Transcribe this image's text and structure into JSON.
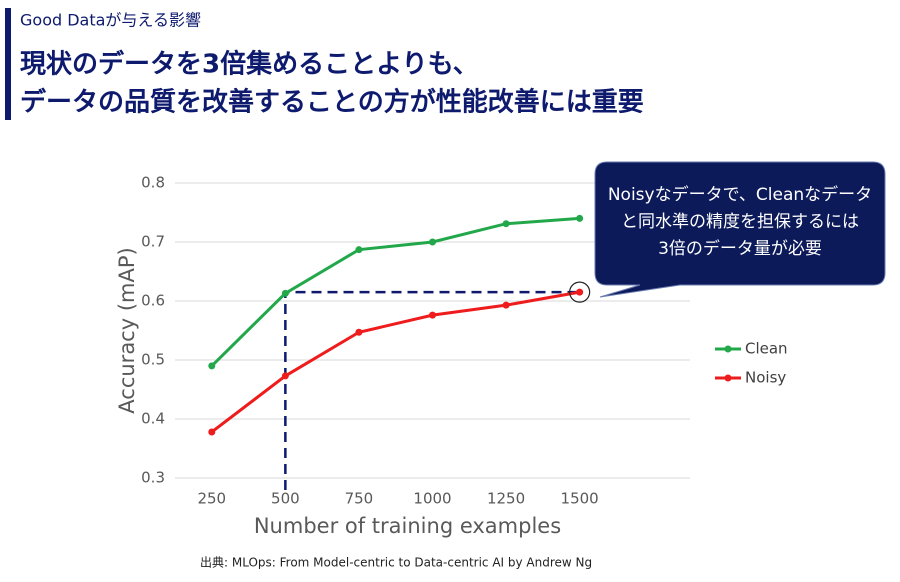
{
  "header": {
    "subtitle": "Good Dataが与える影響",
    "title_lines": [
      "現状のデータを3倍集めることよりも、",
      "データの品質を改善することの方が性能改善には重要"
    ]
  },
  "chart_data": {
    "type": "line",
    "x": [
      250,
      500,
      750,
      1000,
      1250,
      1500
    ],
    "series": [
      {
        "name": "Clean",
        "color": "#22a84a",
        "values": [
          0.49,
          0.613,
          0.687,
          0.7,
          0.731,
          0.74
        ]
      },
      {
        "name": "Noisy",
        "color": "#ee1c1c",
        "values": [
          0.378,
          0.473,
          0.547,
          0.576,
          0.593,
          0.615
        ]
      }
    ],
    "xlim": [
      125,
      1875
    ],
    "xticks": [
      250,
      500,
      750,
      1000,
      1250,
      1500
    ],
    "ylim": [
      0.3,
      0.8
    ],
    "yticks": [
      0.3,
      0.4,
      0.5,
      0.6,
      0.7,
      0.8
    ],
    "xlabel": "Number of training examples",
    "ylabel": "Accuracy (mAP)",
    "grid": true,
    "legend": "right",
    "annotation": [
      "Noisyなデータで、Cleanなデータ",
      "と同水準の精度を担保するには",
      "3倍のデータ量が必要"
    ]
  },
  "source": "出典: MLOps: From Model-centric to Data-centric AI by Andrew Ng"
}
